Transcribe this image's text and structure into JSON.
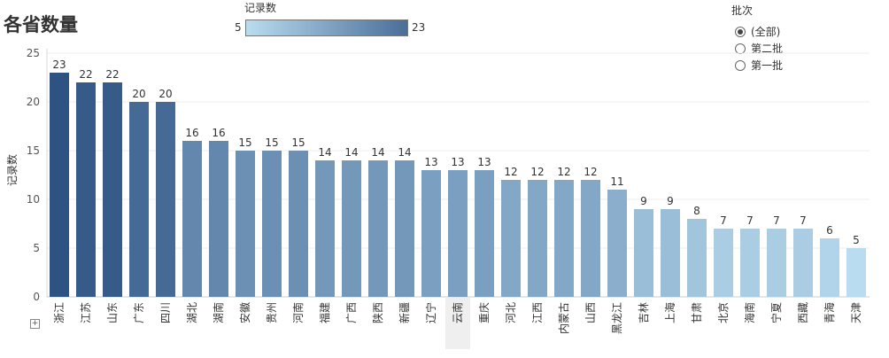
{
  "page": {
    "title": "各省数量"
  },
  "color_legend": {
    "title": "记录数",
    "min_label": "5",
    "max_label": "23",
    "start_color": "#b9dcf0",
    "end_color": "#4a6e98"
  },
  "filter": {
    "title": "批次",
    "options": [
      {
        "label": "(全部)",
        "checked": true
      },
      {
        "label": "第二批",
        "checked": false
      },
      {
        "label": "第一批",
        "checked": false
      }
    ]
  },
  "chart_data": {
    "type": "bar",
    "title": "各省数量",
    "ylabel": "记录数",
    "xlabel": "",
    "ylim": [
      0,
      25
    ],
    "yticks": [
      0,
      5,
      10,
      15,
      20,
      25
    ],
    "grid": true,
    "highlighted_category": "云南",
    "color_scale": {
      "min": 5,
      "max": 23,
      "min_color": "#b9dcf0",
      "max_color": "#2e5383"
    },
    "categories": [
      "浙江",
      "江苏",
      "山东",
      "广东",
      "四川",
      "湖北",
      "湖南",
      "安徽",
      "贵州",
      "河南",
      "福建",
      "广西",
      "陕西",
      "新疆",
      "辽宁",
      "云南",
      "重庆",
      "河北",
      "江西",
      "内蒙古",
      "山西",
      "黑龙江",
      "吉林",
      "上海",
      "甘肃",
      "北京",
      "海南",
      "宁夏",
      "西藏",
      "青海",
      "天津"
    ],
    "values": [
      23,
      22,
      22,
      20,
      20,
      16,
      16,
      15,
      15,
      15,
      14,
      14,
      14,
      14,
      13,
      13,
      13,
      12,
      12,
      12,
      12,
      11,
      9,
      9,
      8,
      7,
      7,
      7,
      7,
      6,
      5
    ]
  }
}
